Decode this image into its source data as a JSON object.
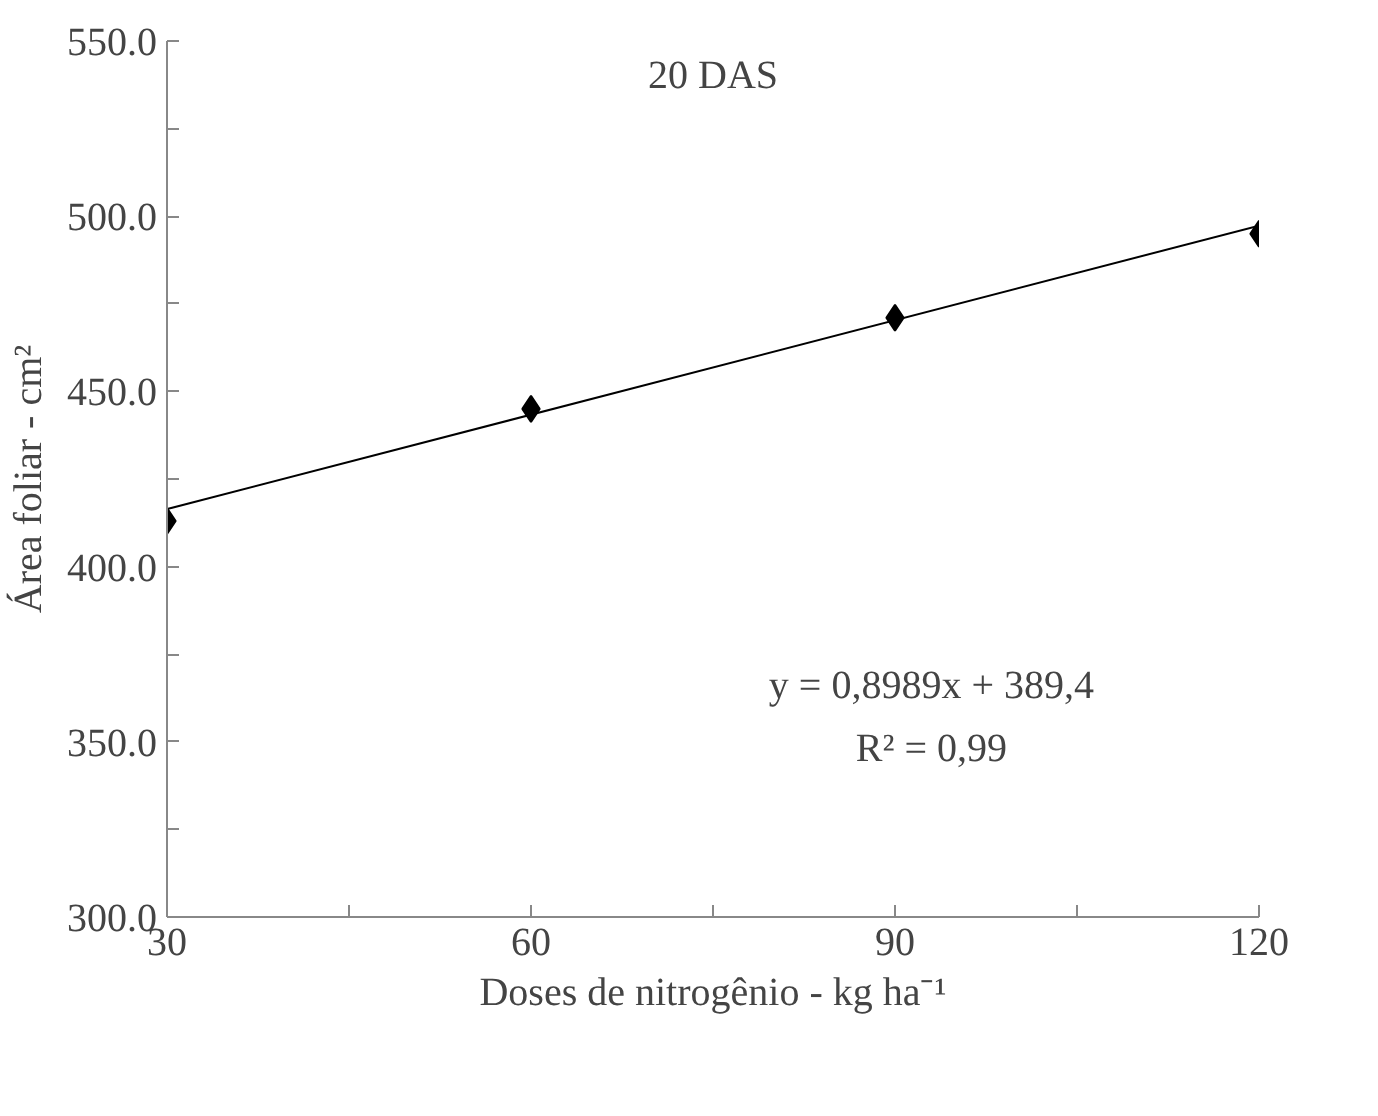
{
  "chart_data": {
    "type": "scatter",
    "title": "20 DAS",
    "xlabel": "Doses de nitrogênio - kg ha⁻¹",
    "ylabel": "Área foliar - cm²",
    "x": [
      30,
      60,
      90,
      120
    ],
    "series": [
      {
        "color": "#000000",
        "marker": "diamond",
        "values": [
          413,
          445,
          471,
          495
        ]
      },
      {
        "type": "line",
        "color": "#000000",
        "x": [
          30,
          120
        ],
        "values": [
          416.4,
          497.3
        ]
      }
    ],
    "xlim": [
      30,
      120
    ],
    "xticks": [
      30,
      {
        "value": 45,
        "label": null
      },
      60,
      {
        "value": 75,
        "label": null
      },
      90,
      {
        "value": 105,
        "label": null
      },
      120
    ],
    "ylim": [
      300,
      550
    ],
    "yticks": [
      {
        "value": 300,
        "label": "300.0"
      },
      {
        "value": 325,
        "label": null
      },
      {
        "value": 350,
        "label": "350.0"
      },
      {
        "value": 375,
        "label": null
      },
      {
        "value": 400,
        "label": "400.0"
      },
      {
        "value": 425,
        "label": null
      },
      {
        "value": 450,
        "label": "450.0"
      },
      {
        "value": 475,
        "label": null
      },
      {
        "value": 500,
        "label": "500.0"
      },
      {
        "value": 525,
        "label": null
      },
      {
        "value": 550,
        "label": "550.0"
      }
    ],
    "annotations": [
      "y = 0,8989x + 389,4",
      "R² = 0,99"
    ],
    "grid": false
  }
}
